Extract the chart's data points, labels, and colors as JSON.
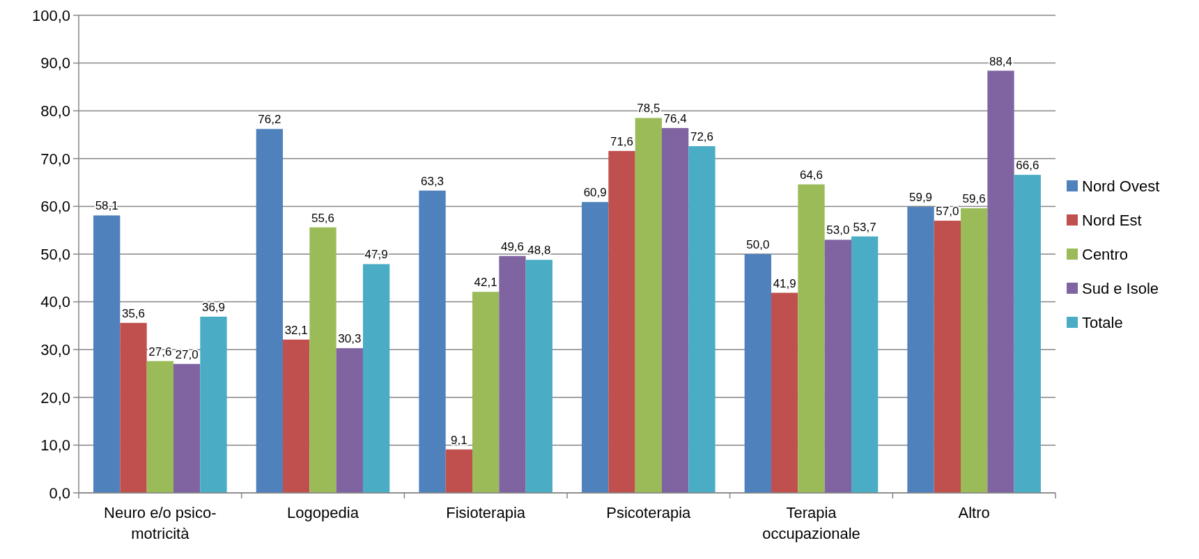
{
  "chart_data": {
    "type": "bar",
    "categories": [
      "Neuro e/o psico-motricità",
      "Logopedia",
      "Fisioterapia",
      "Psicoterapia",
      "Terapia occupazionale",
      "Altro"
    ],
    "series": [
      {
        "name": "Nord Ovest",
        "color": "#4f81bd",
        "values": [
          58.1,
          76.2,
          63.3,
          60.9,
          50.0,
          59.9
        ],
        "value_labels": [
          "58,1",
          "76,2",
          "63,3",
          "60,9",
          "50,0",
          "59,9"
        ]
      },
      {
        "name": "Nord Est",
        "color": "#c0504d",
        "values": [
          35.6,
          32.1,
          9.1,
          71.6,
          41.9,
          57.0
        ],
        "value_labels": [
          "35,6",
          "32,1",
          "9,1",
          "71,6",
          "41,9",
          "57,0"
        ]
      },
      {
        "name": "Centro",
        "color": "#9bbb59",
        "values": [
          27.6,
          55.6,
          42.1,
          78.5,
          64.6,
          59.6
        ],
        "value_labels": [
          "27,6",
          "55,6",
          "42,1",
          "78,5",
          "64,6",
          "59,6"
        ]
      },
      {
        "name": "Sud e Isole",
        "color": "#8064a2",
        "values": [
          27.0,
          30.3,
          49.6,
          76.4,
          53.0,
          88.4
        ],
        "value_labels": [
          "27,0",
          "30,3",
          "49,6",
          "76,4",
          "53,0",
          "88,4"
        ]
      },
      {
        "name": "Totale",
        "color": "#4bacc6",
        "values": [
          36.9,
          47.9,
          48.8,
          72.6,
          53.7,
          66.6
        ],
        "value_labels": [
          "36,9",
          "47,9",
          "48,8",
          "72,6",
          "53,7",
          "66,6"
        ]
      }
    ],
    "ylim": [
      0,
      100
    ],
    "yticks": [
      {
        "value": 0,
        "label": "0,0"
      },
      {
        "value": 10,
        "label": "10,0"
      },
      {
        "value": 20,
        "label": "20,0"
      },
      {
        "value": 30,
        "label": "30,0"
      },
      {
        "value": 40,
        "label": "40,0"
      },
      {
        "value": 50,
        "label": "50,0"
      },
      {
        "value": 60,
        "label": "60,0"
      },
      {
        "value": 70,
        "label": "70,0"
      },
      {
        "value": 80,
        "label": "80,0"
      },
      {
        "value": 90,
        "label": "90,0"
      },
      {
        "value": 100,
        "label": "100,0"
      }
    ],
    "grid": "y",
    "legend": "right"
  }
}
